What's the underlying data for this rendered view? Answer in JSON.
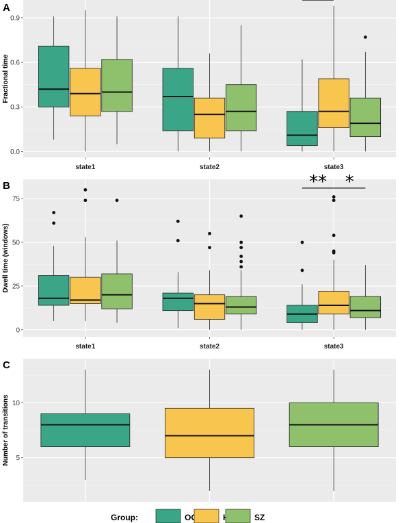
{
  "colors": {
    "OCD": "#3aa587",
    "HC": "#f8c64f",
    "SZ": "#8fc06b",
    "panel_bg": "#ebebeb",
    "grid": "#ffffff"
  },
  "legend": {
    "title": "Group:",
    "groups": [
      "OCD",
      "HC",
      "SZ"
    ]
  },
  "chart_data": [
    {
      "type": "box",
      "panel": "A",
      "ylabel": "Fractional time",
      "categories": [
        "state1",
        "state2",
        "state3"
      ],
      "ylim": [
        -0.04,
        1.02
      ],
      "yticks": [
        0.0,
        0.3,
        0.6,
        0.9
      ],
      "ytick_labels": [
        "0.0",
        "0.3",
        "0.6",
        "0.9"
      ],
      "grid": true,
      "series": [
        {
          "name": "OCD",
          "boxes": [
            {
              "min": 0.08,
              "q1": 0.3,
              "median": 0.42,
              "q3": 0.71,
              "max": 0.91,
              "outliers": []
            },
            {
              "min": 0.0,
              "q1": 0.14,
              "median": 0.37,
              "q3": 0.56,
              "max": 0.91,
              "outliers": []
            },
            {
              "min": 0.0,
              "q1": 0.04,
              "median": 0.11,
              "q3": 0.27,
              "max": 0.62,
              "outliers": []
            }
          ]
        },
        {
          "name": "HC",
          "boxes": [
            {
              "min": 0.0,
              "q1": 0.24,
              "median": 0.39,
              "q3": 0.56,
              "max": 0.95,
              "outliers": []
            },
            {
              "min": 0.0,
              "q1": 0.09,
              "median": 0.25,
              "q3": 0.36,
              "max": 0.66,
              "outliers": []
            },
            {
              "min": 0.0,
              "q1": 0.16,
              "median": 0.27,
              "q3": 0.49,
              "max": 0.98,
              "outliers": []
            }
          ]
        },
        {
          "name": "SZ",
          "boxes": [
            {
              "min": 0.05,
              "q1": 0.27,
              "median": 0.4,
              "q3": 0.62,
              "max": 0.91,
              "outliers": []
            },
            {
              "min": 0.0,
              "q1": 0.14,
              "median": 0.27,
              "q3": 0.45,
              "max": 0.85,
              "outliers": []
            },
            {
              "min": 0.0,
              "q1": 0.1,
              "median": 0.19,
              "q3": 0.36,
              "max": 0.67,
              "outliers": [
                0.77
              ]
            }
          ]
        }
      ],
      "annotations": [
        {
          "text": "**",
          "category": "state3",
          "from": "OCD",
          "to": "HC",
          "y": 1.02
        }
      ]
    },
    {
      "type": "box",
      "panel": "B",
      "ylabel": "Dwell time (windows)",
      "categories": [
        "state1",
        "state2",
        "state3"
      ],
      "ylim": [
        -4,
        86
      ],
      "yticks": [
        0,
        25,
        50,
        75
      ],
      "ytick_labels": [
        "0",
        "25",
        "50",
        "75"
      ],
      "grid": true,
      "series": [
        {
          "name": "OCD",
          "boxes": [
            {
              "min": 5,
              "q1": 14,
              "median": 18,
              "q3": 31,
              "max": 48,
              "outliers": [
                61,
                67
              ]
            },
            {
              "min": 1,
              "q1": 11,
              "median": 18,
              "q3": 21,
              "max": 33,
              "outliers": [
                51,
                62
              ]
            },
            {
              "min": 0,
              "q1": 4,
              "median": 9,
              "q3": 14,
              "max": 26,
              "outliers": [
                34,
                50
              ]
            }
          ]
        },
        {
          "name": "HC",
          "boxes": [
            {
              "min": 5,
              "q1": 15,
              "median": 17,
              "q3": 30,
              "max": 53,
              "outliers": [
                74,
                80
              ]
            },
            {
              "min": 0,
              "q1": 6,
              "median": 15,
              "q3": 20,
              "max": 34,
              "outliers": [
                47,
                55
              ]
            },
            {
              "min": 0,
              "q1": 9,
              "median": 14,
              "q3": 22,
              "max": 40,
              "outliers": [
                44,
                45,
                54,
                74,
                76
              ]
            }
          ]
        },
        {
          "name": "SZ",
          "boxes": [
            {
              "min": 4,
              "q1": 12,
              "median": 20,
              "q3": 32,
              "max": 51,
              "outliers": [
                74
              ]
            },
            {
              "min": 0,
              "q1": 9,
              "median": 13,
              "q3": 19,
              "max": 34,
              "outliers": [
                36,
                39,
                42,
                47,
                50,
                65
              ]
            },
            {
              "min": 0,
              "q1": 7,
              "median": 11,
              "q3": 19,
              "max": 37,
              "outliers": []
            }
          ]
        }
      ],
      "annotations": [
        {
          "text": "**",
          "category": "state3",
          "from": "OCD",
          "to": "HC",
          "y": 81
        },
        {
          "text": "*",
          "category": "state3",
          "from": "HC",
          "to": "SZ",
          "y": 81
        }
      ]
    },
    {
      "type": "box",
      "panel": "C",
      "ylabel": "Number of transitions",
      "categories": [
        "OCD",
        "HC",
        "SZ"
      ],
      "ylim": [
        1.0,
        14.0
      ],
      "yticks": [
        5,
        10
      ],
      "ytick_labels": [
        "5",
        "10"
      ],
      "grid": true,
      "series": [
        {
          "name": "Group",
          "boxes": [
            {
              "min": 3,
              "q1": 6,
              "median": 8,
              "q3": 9,
              "max": 13,
              "outliers": []
            },
            {
              "min": 2,
              "q1": 5,
              "median": 7,
              "q3": 9.5,
              "max": 13,
              "outliers": []
            },
            {
              "min": 2,
              "q1": 6,
              "median": 8,
              "q3": 10,
              "max": 13,
              "outliers": []
            }
          ]
        }
      ],
      "annotations": []
    }
  ]
}
